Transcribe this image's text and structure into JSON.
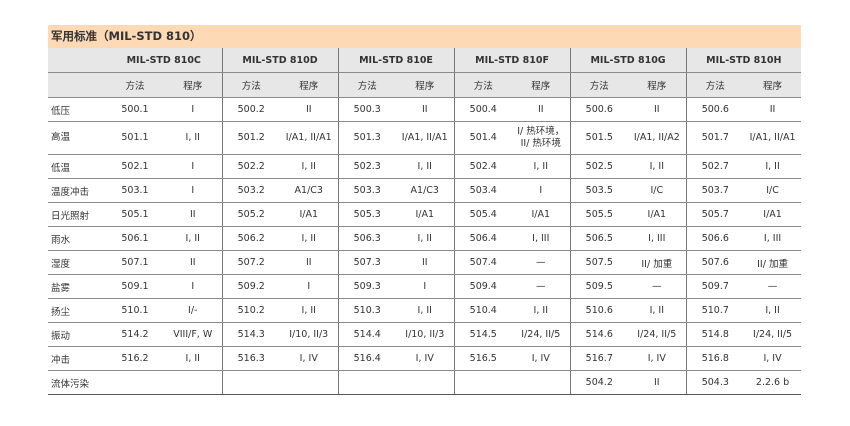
{
  "title": "军用标准（MIL-STD 810）",
  "standards": [
    "MIL-STD 810C",
    "MIL-STD 810D",
    "MIL-STD 810E",
    "MIL-STD 810F",
    "MIL-STD 810G",
    "MIL-STD 810H"
  ],
  "sub_headers": {
    "method": "方法",
    "procedure": "程序"
  },
  "rows": [
    {
      "label": "低压",
      "cells": [
        [
          "500.1",
          "I"
        ],
        [
          "500.2",
          "II"
        ],
        [
          "500.3",
          "II"
        ],
        [
          "500.4",
          "II"
        ],
        [
          "500.6",
          "II"
        ],
        [
          "500.6",
          "II"
        ]
      ]
    },
    {
      "label": "高温",
      "cells": [
        [
          "501.1",
          "I, II"
        ],
        [
          "501.2",
          "I/A1, II/A1"
        ],
        [
          "501.3",
          "I/A1, II/A1"
        ],
        [
          "501.4",
          "I/ 热环境，\nII/ 热环境"
        ],
        [
          "501.5",
          "I/A1, II/A2"
        ],
        [
          "501.7",
          "I/A1, II/A1"
        ]
      ]
    },
    {
      "label": "低温",
      "cells": [
        [
          "502.1",
          "I"
        ],
        [
          "502.2",
          "I, II"
        ],
        [
          "502.3",
          "I, II"
        ],
        [
          "502.4",
          "I, II"
        ],
        [
          "502.5",
          "I, II"
        ],
        [
          "502.7",
          "I, II"
        ]
      ]
    },
    {
      "label": "温度冲击",
      "cells": [
        [
          "503.1",
          "I"
        ],
        [
          "503.2",
          "A1/C3"
        ],
        [
          "503.3",
          "A1/C3"
        ],
        [
          "503.4",
          "I"
        ],
        [
          "503.5",
          "I/C"
        ],
        [
          "503.7",
          "I/C"
        ]
      ]
    },
    {
      "label": "日光照射",
      "cells": [
        [
          "505.1",
          "II"
        ],
        [
          "505.2",
          "I/A1"
        ],
        [
          "505.3",
          "I/A1"
        ],
        [
          "505.4",
          "I/A1"
        ],
        [
          "505.5",
          "I/A1"
        ],
        [
          "505.7",
          "I/A1"
        ]
      ]
    },
    {
      "label": "雨水",
      "cells": [
        [
          "506.1",
          "I, II"
        ],
        [
          "506.2",
          "I, II"
        ],
        [
          "506.3",
          "I, II"
        ],
        [
          "506.4",
          "I, III"
        ],
        [
          "506.5",
          "I, III"
        ],
        [
          "506.6",
          "I, III"
        ]
      ]
    },
    {
      "label": "湿度",
      "cells": [
        [
          "507.1",
          "II"
        ],
        [
          "507.2",
          "II"
        ],
        [
          "507.3",
          "II"
        ],
        [
          "507.4",
          "—"
        ],
        [
          "507.5",
          "II/ 加重"
        ],
        [
          "507.6",
          "II/ 加重"
        ]
      ]
    },
    {
      "label": "盐雾",
      "cells": [
        [
          "509.1",
          "I"
        ],
        [
          "509.2",
          "I"
        ],
        [
          "509.3",
          "I"
        ],
        [
          "509.4",
          "—"
        ],
        [
          "509.5",
          "—"
        ],
        [
          "509.7",
          "—"
        ]
      ]
    },
    {
      "label": "扬尘",
      "cells": [
        [
          "510.1",
          "I/-"
        ],
        [
          "510.2",
          "I, II"
        ],
        [
          "510.3",
          "I, II"
        ],
        [
          "510.4",
          "I, II"
        ],
        [
          "510.6",
          "I, II"
        ],
        [
          "510.7",
          "I, II"
        ]
      ]
    },
    {
      "label": "振动",
      "cells": [
        [
          "514.2",
          "VIII/F, W"
        ],
        [
          "514.3",
          "I/10, II/3"
        ],
        [
          "514.4",
          "I/10, II/3"
        ],
        [
          "514.5",
          "I/24, II/5"
        ],
        [
          "514.6",
          "I/24, II/5"
        ],
        [
          "514.8",
          "I/24, II/5"
        ]
      ]
    },
    {
      "label": "冲击",
      "cells": [
        [
          "516.2",
          "I, II"
        ],
        [
          "516.3",
          "I, IV"
        ],
        [
          "516.4",
          "I, IV"
        ],
        [
          "516.5",
          "I, IV"
        ],
        [
          "516.7",
          "I, IV"
        ],
        [
          "516.8",
          "I, IV"
        ]
      ]
    },
    {
      "label": "流体污染",
      "cells": [
        [
          "",
          ""
        ],
        [
          "",
          ""
        ],
        [
          "",
          ""
        ],
        [
          "",
          ""
        ],
        [
          "504.2",
          "II"
        ],
        [
          "504.3",
          "2.2.6 b"
        ]
      ]
    }
  ],
  "colors": {
    "title_bg": "#fdd9b6",
    "header_bg": "#e7e7e7"
  }
}
